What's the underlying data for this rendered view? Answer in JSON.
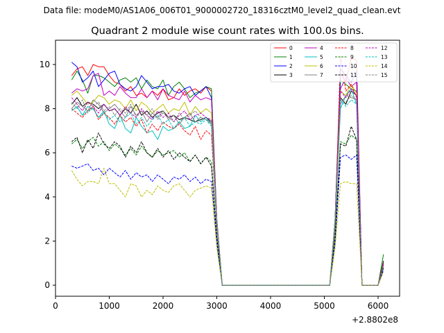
{
  "figure": {
    "suptitle": "Data file: modeM0/AS1A06_006T01_9000002720_18316cztM0_level2_quad_clean.evt"
  },
  "chart_data": {
    "type": "line",
    "title": "Quadrant 2 module wise count rates with 100.0s bins.",
    "xlabel": "",
    "ylabel": "",
    "x_offset_label": "+2.8802e8",
    "xlim": [
      0,
      6400
    ],
    "ylim": [
      -0.5,
      11.1
    ],
    "xticks": [
      0,
      1000,
      2000,
      3000,
      4000,
      5000,
      6000
    ],
    "yticks": [
      0,
      2,
      4,
      6,
      8,
      10
    ],
    "grid": false,
    "legend": {
      "placement": "top-right",
      "columns": 4
    },
    "x": [
      300,
      400,
      500,
      600,
      700,
      800,
      900,
      1000,
      1100,
      1200,
      1300,
      1400,
      1500,
      1600,
      1700,
      1800,
      1900,
      2000,
      2100,
      2200,
      2300,
      2400,
      2500,
      2600,
      2700,
      2800,
      2900,
      3000,
      3100,
      3200,
      3300,
      3400,
      3500,
      3600,
      3700,
      3800,
      3900,
      4000,
      4100,
      4200,
      4300,
      4400,
      4500,
      4600,
      4700,
      4800,
      4900,
      5000,
      5100,
      5200,
      5300,
      5400,
      5500,
      5600,
      5700,
      5800,
      5900,
      6000,
      6100
    ],
    "series": [
      {
        "name": "0",
        "color": "#ff0000",
        "dash": "solid",
        "values": [
          9.5,
          9.8,
          9.9,
          9.5,
          10.0,
          9.9,
          9.9,
          9.5,
          9.2,
          9.1,
          8.8,
          9.0,
          8.6,
          8.7,
          8.5,
          8.8,
          8.6,
          8.9,
          8.4,
          8.5,
          8.9,
          8.6,
          8.8,
          8.9,
          8.7,
          9.0,
          8.8,
          3.0,
          0,
          0,
          0,
          0,
          0,
          0,
          0,
          0,
          0,
          0,
          0,
          0,
          0,
          0,
          0,
          0,
          0,
          0,
          0,
          0,
          0,
          3.0,
          9.6,
          9.2,
          10.3,
          10.2,
          0,
          0,
          0,
          0,
          1.0
        ]
      },
      {
        "name": "1",
        "color": "#008000",
        "dash": "solid",
        "values": [
          9.3,
          9.7,
          9.3,
          8.7,
          9.5,
          9.5,
          9.4,
          9.2,
          9.0,
          9.3,
          9.4,
          9.2,
          9.4,
          8.9,
          9.3,
          9.0,
          8.9,
          9.3,
          8.6,
          9.0,
          9.2,
          8.9,
          8.5,
          8.7,
          8.8,
          9.0,
          8.9,
          3.0,
          0,
          0,
          0,
          0,
          0,
          0,
          0,
          0,
          0,
          0,
          0,
          0,
          0,
          0,
          0,
          0,
          0,
          0,
          0,
          0,
          0,
          3.0,
          9.3,
          9.1,
          8.9,
          8.8,
          0,
          0,
          0,
          0,
          1.4
        ]
      },
      {
        "name": "2",
        "color": "#0000ff",
        "dash": "solid",
        "values": [
          10.1,
          9.9,
          9.2,
          9.4,
          9.7,
          9.0,
          9.3,
          9.6,
          9.7,
          9.1,
          8.9,
          8.8,
          9.0,
          9.5,
          9.2,
          8.9,
          9.0,
          9.0,
          9.1,
          8.8,
          8.7,
          8.9,
          9.0,
          8.6,
          8.8,
          9.0,
          8.5,
          2.9,
          0,
          0,
          0,
          0,
          0,
          0,
          0,
          0,
          0,
          0,
          0,
          0,
          0,
          0,
          0,
          0,
          0,
          0,
          0,
          0,
          0,
          3.0,
          9.8,
          9.5,
          9.2,
          9.7,
          0,
          0,
          0,
          0,
          0.9
        ]
      },
      {
        "name": "3",
        "color": "#000000",
        "dash": "solid",
        "values": [
          8.2,
          8.5,
          8.1,
          8.3,
          8.2,
          8.0,
          8.2,
          7.9,
          8.0,
          7.7,
          8.0,
          7.8,
          8.2,
          7.7,
          7.9,
          7.6,
          7.8,
          7.9,
          7.6,
          7.7,
          7.5,
          7.6,
          7.5,
          7.4,
          7.5,
          7.6,
          7.4,
          2.8,
          0,
          0,
          0,
          0,
          0,
          0,
          0,
          0,
          0,
          0,
          0,
          0,
          0,
          0,
          0,
          0,
          0,
          0,
          0,
          0,
          0,
          2.7,
          8.5,
          8.2,
          8.8,
          8.6,
          0,
          0,
          0,
          0,
          1.1
        ]
      },
      {
        "name": "4",
        "color": "#bf00bf",
        "dash": "solid",
        "values": [
          8.7,
          8.9,
          8.8,
          8.9,
          9.5,
          9.6,
          8.6,
          8.8,
          8.6,
          9.0,
          8.7,
          8.5,
          8.5,
          8.9,
          8.5,
          8.8,
          8.4,
          8.9,
          8.6,
          8.5,
          8.4,
          8.8,
          8.3,
          8.6,
          8.4,
          8.5,
          8.4,
          3.0,
          0,
          0,
          0,
          0,
          0,
          0,
          0,
          0,
          0,
          0,
          0,
          0,
          0,
          0,
          0,
          0,
          0,
          0,
          0,
          0,
          0,
          2.9,
          8.9,
          9.4,
          9.0,
          9.2,
          0,
          0,
          0,
          0,
          1.0
        ]
      },
      {
        "name": "5",
        "color": "#00bfbf",
        "dash": "solid",
        "values": [
          7.9,
          8.1,
          7.7,
          8.1,
          8.0,
          7.6,
          7.9,
          7.3,
          7.1,
          7.7,
          7.1,
          6.9,
          7.6,
          7.2,
          6.9,
          7.0,
          6.6,
          7.2,
          7.0,
          7.1,
          7.4,
          7.1,
          7.2,
          7.7,
          7.4,
          7.6,
          7.3,
          2.8,
          0,
          0,
          0,
          0,
          0,
          0,
          0,
          0,
          0,
          0,
          0,
          0,
          0,
          0,
          0,
          0,
          0,
          0,
          0,
          0,
          0,
          2.8,
          8.0,
          8.6,
          8.9,
          8.2,
          0,
          0,
          0,
          0,
          0.9
        ]
      },
      {
        "name": "6",
        "color": "#bfbf00",
        "dash": "solid",
        "values": [
          8.6,
          8.8,
          8.5,
          8.2,
          8.3,
          8.6,
          8.5,
          8.2,
          8.4,
          8.3,
          8.0,
          8.4,
          7.9,
          8.3,
          8.1,
          7.8,
          8.0,
          8.2,
          7.8,
          8.0,
          7.9,
          8.3,
          7.7,
          8.1,
          7.8,
          8.0,
          7.8,
          2.9,
          0,
          0,
          0,
          0,
          0,
          0,
          0,
          0,
          0,
          0,
          0,
          0,
          0,
          0,
          0,
          0,
          0,
          0,
          0,
          0,
          0,
          3.0,
          8.8,
          8.6,
          9.1,
          8.7,
          0,
          0,
          0,
          0,
          1.0
        ]
      },
      {
        "name": "7",
        "color": "#808080",
        "dash": "solid",
        "values": [
          8.0,
          8.3,
          8.1,
          7.9,
          8.4,
          8.2,
          7.8,
          8.0,
          8.2,
          7.9,
          7.6,
          8.1,
          7.7,
          7.9,
          7.4,
          7.8,
          7.6,
          7.9,
          7.5,
          7.7,
          7.3,
          7.6,
          7.8,
          7.4,
          7.6,
          7.5,
          7.3,
          2.8,
          0,
          0,
          0,
          0,
          0,
          0,
          0,
          0,
          0,
          0,
          0,
          0,
          0,
          0,
          0,
          0,
          0,
          0,
          0,
          0,
          0,
          2.8,
          8.2,
          8.6,
          8.5,
          8.4,
          0,
          0,
          0,
          0,
          0.9
        ]
      },
      {
        "name": "8",
        "color": "#ff0000",
        "dash": "dashed",
        "values": [
          8.0,
          7.8,
          7.6,
          7.9,
          8.1,
          7.5,
          7.8,
          7.6,
          7.3,
          7.7,
          7.4,
          7.6,
          7.2,
          7.5,
          6.9,
          7.3,
          7.0,
          7.4,
          7.2,
          7.1,
          7.3,
          7.0,
          6.8,
          7.2,
          6.6,
          7.0,
          6.8,
          2.7,
          0,
          0,
          0,
          0,
          0,
          0,
          0,
          0,
          0,
          0,
          0,
          0,
          0,
          0,
          0,
          0,
          0,
          0,
          0,
          0,
          0,
          2.6,
          10.4,
          8.8,
          9.1,
          8.5,
          0,
          0,
          0,
          0,
          1.0
        ]
      },
      {
        "name": "9",
        "color": "#008000",
        "dash": "dashed",
        "values": [
          6.4,
          6.6,
          6.2,
          6.5,
          6.7,
          6.3,
          6.5,
          6.1,
          6.4,
          6.2,
          5.9,
          6.2,
          5.9,
          6.3,
          6.0,
          5.8,
          6.1,
          5.9,
          6.0,
          6.1,
          5.8,
          6.0,
          5.6,
          5.9,
          5.5,
          5.8,
          5.6,
          2.2,
          0,
          0,
          0,
          0,
          0,
          0,
          0,
          0,
          0,
          0,
          0,
          0,
          0,
          0,
          0,
          0,
          0,
          0,
          0,
          0,
          0,
          2.2,
          6.5,
          6.4,
          6.8,
          6.6,
          0,
          0,
          0,
          0,
          0.8
        ]
      },
      {
        "name": "10",
        "color": "#0000ff",
        "dash": "dashed",
        "values": [
          5.4,
          5.3,
          5.4,
          5.5,
          5.2,
          5.3,
          5.0,
          5.3,
          5.1,
          4.9,
          5.2,
          4.8,
          5.1,
          4.9,
          5.0,
          4.7,
          5.0,
          4.8,
          4.6,
          4.9,
          4.8,
          5.0,
          4.7,
          4.9,
          4.6,
          4.8,
          4.7,
          1.9,
          0,
          0,
          0,
          0,
          0,
          0,
          0,
          0,
          0,
          0,
          0,
          0,
          0,
          0,
          0,
          0,
          0,
          0,
          0,
          0,
          0,
          1.9,
          5.8,
          5.9,
          5.7,
          5.9,
          0,
          0,
          0,
          0,
          0.7
        ]
      },
      {
        "name": "11",
        "color": "#000000",
        "dash": "dashed",
        "values": [
          6.5,
          6.7,
          6.0,
          6.6,
          6.2,
          6.9,
          6.4,
          6.2,
          6.5,
          6.3,
          5.8,
          6.3,
          6.0,
          6.5,
          6.0,
          5.8,
          6.2,
          5.8,
          6.1,
          5.7,
          6.0,
          5.8,
          5.6,
          5.9,
          5.5,
          5.8,
          5.4,
          2.2,
          0,
          0,
          0,
          0,
          0,
          0,
          0,
          0,
          0,
          0,
          0,
          0,
          0,
          0,
          0,
          0,
          0,
          0,
          0,
          0,
          0,
          2.2,
          6.4,
          6.3,
          7.2,
          6.6,
          0,
          0,
          0,
          0,
          0.8
        ]
      },
      {
        "name": "12",
        "color": "#bf00bf",
        "dash": "dashed",
        "values": [
          8.5,
          8.2,
          7.9,
          8.3,
          8.1,
          7.8,
          8.2,
          7.9,
          8.0,
          7.7,
          8.1,
          7.8,
          7.6,
          8.0,
          7.7,
          7.5,
          7.9,
          7.6,
          7.8,
          7.4,
          7.7,
          7.9,
          7.5,
          7.7,
          7.8,
          7.6,
          7.5,
          2.8,
          0,
          0,
          0,
          0,
          0,
          0,
          0,
          0,
          0,
          0,
          0,
          0,
          0,
          0,
          0,
          0,
          0,
          0,
          0,
          0,
          0,
          2.8,
          8.8,
          8.5,
          8.9,
          8.6,
          0,
          0,
          0,
          0,
          1.0
        ]
      },
      {
        "name": "13",
        "color": "#00bfbf",
        "dash": "dashed",
        "values": [
          7.9,
          8.1,
          7.7,
          7.9,
          8.0,
          7.6,
          7.8,
          7.5,
          7.7,
          7.4,
          7.6,
          7.8,
          7.3,
          7.6,
          7.2,
          7.5,
          7.7,
          7.3,
          7.5,
          7.1,
          7.4,
          7.6,
          7.2,
          7.4,
          7.3,
          7.5,
          7.2,
          2.7,
          0,
          0,
          0,
          0,
          0,
          0,
          0,
          0,
          0,
          0,
          0,
          0,
          0,
          0,
          0,
          0,
          0,
          0,
          0,
          0,
          0,
          2.7,
          8.4,
          8.1,
          8.4,
          8.2,
          0,
          0,
          0,
          0,
          0.9
        ]
      },
      {
        "name": "14",
        "color": "#bfbf00",
        "dash": "dashed",
        "values": [
          5.2,
          4.8,
          4.5,
          4.7,
          4.7,
          4.6,
          5.3,
          4.6,
          4.6,
          4.3,
          4.0,
          4.6,
          4.5,
          4.0,
          4.3,
          4.1,
          4.5,
          4.3,
          4.2,
          4.5,
          4.6,
          4.3,
          4.0,
          4.3,
          4.4,
          4.5,
          4.4,
          1.7,
          0,
          0,
          0,
          0,
          0,
          0,
          0,
          0,
          0,
          0,
          0,
          0,
          0,
          0,
          0,
          0,
          0,
          0,
          0,
          0,
          0,
          1.7,
          4.6,
          4.7,
          4.6,
          4.6,
          0,
          0,
          0,
          0,
          0.6
        ]
      },
      {
        "name": "15",
        "color": "#808080",
        "dash": "dashed",
        "values": [
          8.3,
          8.0,
          8.4,
          7.8,
          8.1,
          8.3,
          7.9,
          8.1,
          7.7,
          8.0,
          7.8,
          8.2,
          7.6,
          7.9,
          7.7,
          8.0,
          7.5,
          7.8,
          7.6,
          7.4,
          7.8,
          7.5,
          7.7,
          7.9,
          7.6,
          7.5,
          7.4,
          2.8,
          0,
          0,
          0,
          0,
          0,
          0,
          0,
          0,
          0,
          0,
          0,
          0,
          0,
          0,
          0,
          0,
          0,
          0,
          0,
          0,
          0,
          2.8,
          8.4,
          8.3,
          8.6,
          8.4,
          0,
          0,
          0,
          0,
          0.9
        ]
      }
    ]
  }
}
